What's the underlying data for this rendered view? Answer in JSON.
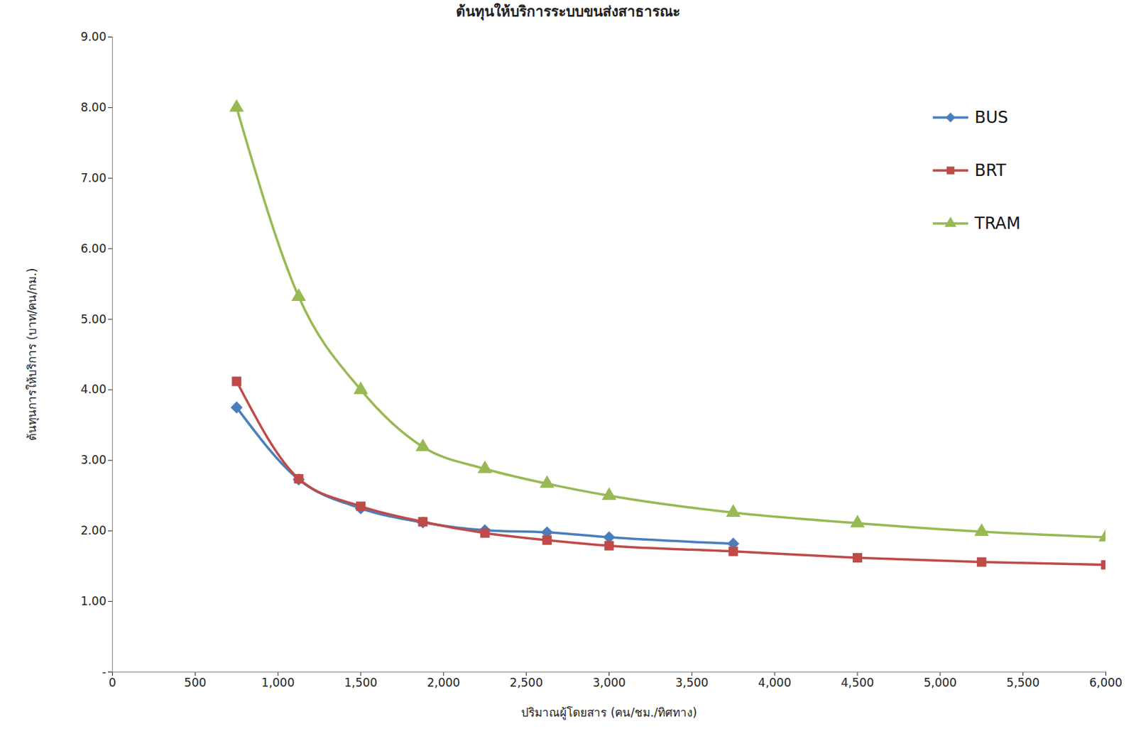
{
  "chart_data": {
    "type": "line",
    "title": "ต้นทุนให้บริการระบบขนส่งสาธารณะ",
    "x_label": "ปริมาณผู้โดยสาร (คน/ชม./ทิศทาง)",
    "y_label": "ต้นทุนการให้บริการ (บาท/คน/กม.)",
    "x": [
      750,
      1125,
      1500,
      1875,
      2250,
      2625,
      3000,
      3750,
      4500,
      5250,
      6000
    ],
    "series": [
      {
        "name": "BUS",
        "color": "#4a7ebb",
        "marker": "diamond",
        "values": [
          3.75,
          2.73,
          2.32,
          2.12,
          2.01,
          1.98,
          1.91,
          1.82,
          null,
          null,
          null
        ]
      },
      {
        "name": "BRT",
        "color": "#be4b48",
        "marker": "square",
        "values": [
          4.12,
          2.74,
          2.35,
          2.13,
          1.97,
          1.87,
          1.79,
          1.71,
          1.62,
          1.56,
          1.52
        ]
      },
      {
        "name": "TRAM",
        "color": "#98b954",
        "marker": "triangle",
        "values": [
          8.0,
          5.32,
          4.0,
          3.19,
          2.88,
          2.67,
          2.5,
          2.26,
          2.11,
          1.99,
          1.91
        ]
      }
    ],
    "xlim": [
      0,
      6000
    ],
    "xticks": [
      0,
      500,
      {
        "value": 1000,
        "label": "1,000"
      },
      {
        "value": 1500,
        "label": "1,500"
      },
      {
        "value": 2000,
        "label": "2,000"
      },
      {
        "value": 2500,
        "label": "2,500"
      },
      {
        "value": 3000,
        "label": "3,000"
      },
      {
        "value": 3500,
        "label": "3,500"
      },
      {
        "value": 4000,
        "label": "4,000"
      },
      {
        "value": 4500,
        "label": "4,500"
      },
      {
        "value": 5000,
        "label": "5,000"
      },
      {
        "value": 5500,
        "label": "5,500"
      },
      {
        "value": 6000,
        "label": "6,000"
      }
    ],
    "ylim": [
      0,
      9
    ],
    "yticks": [
      {
        "value": 0,
        "label": "-"
      },
      {
        "value": 1,
        "label": "1.00"
      },
      {
        "value": 2,
        "label": "2.00"
      },
      {
        "value": 3,
        "label": "3.00"
      },
      {
        "value": 4,
        "label": "4.00"
      },
      {
        "value": 5,
        "label": "5.00"
      },
      {
        "value": 6,
        "label": "6.00"
      },
      {
        "value": 7,
        "label": "7.00"
      },
      {
        "value": 8,
        "label": "8.00"
      },
      {
        "value": 9,
        "label": "9.00"
      }
    ],
    "grid": false,
    "legend": "top-right"
  }
}
